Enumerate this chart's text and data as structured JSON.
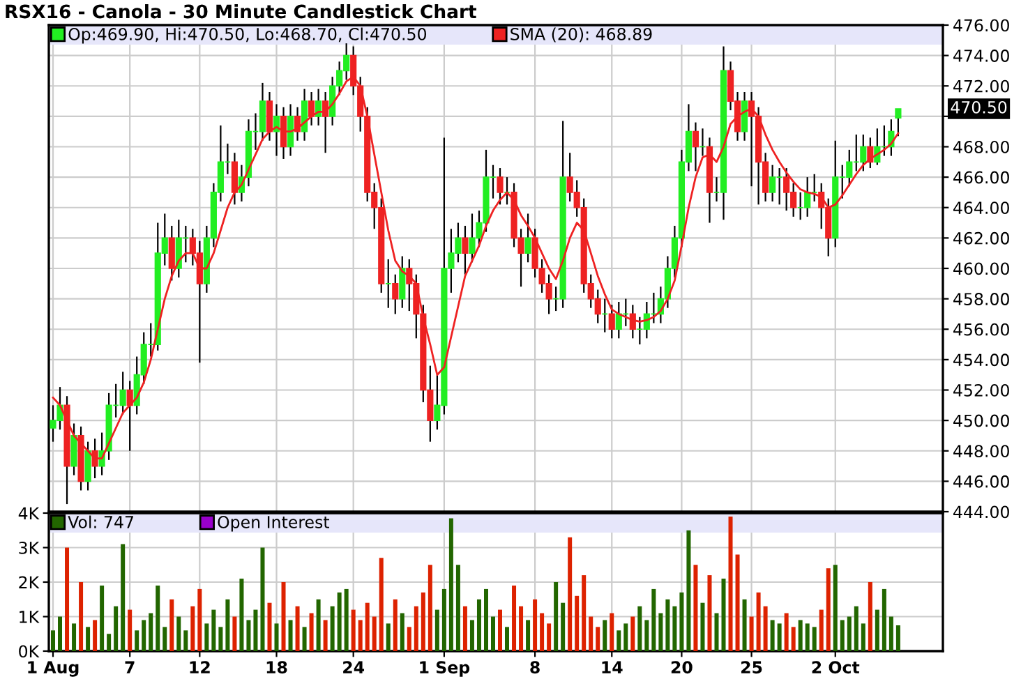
{
  "chart_data": [
    {
      "type": "candlestick",
      "title": "RSX16 - Canola - 30 Minute Candlestick Chart",
      "categories": [
        null,
        null,
        null,
        null,
        null,
        null,
        null,
        null,
        null,
        null,
        null,
        null,
        null,
        null,
        null,
        null,
        null,
        null,
        null,
        null,
        null,
        null,
        null,
        null,
        null,
        null,
        null,
        null,
        null,
        null,
        null,
        null,
        null,
        null,
        null,
        null,
        null,
        null,
        null,
        null,
        null,
        null,
        null,
        null,
        null,
        null,
        null,
        null,
        null,
        null,
        null,
        null,
        null,
        null,
        null,
        null,
        null,
        null,
        null,
        null,
        null,
        null,
        null,
        null,
        null,
        null,
        null,
        null,
        null,
        null,
        null,
        null,
        null,
        null,
        null,
        null,
        null,
        null,
        null,
        null,
        null,
        null,
        null,
        null,
        null,
        null,
        null,
        null,
        null,
        null,
        null,
        null,
        null,
        null,
        null,
        null,
        null,
        null,
        null,
        null,
        null,
        null,
        null,
        null,
        null,
        null,
        null,
        null,
        null,
        null,
        null,
        null,
        null,
        null,
        null,
        null,
        null,
        null,
        null,
        null,
        null,
        null
      ],
      "series": [
        {
          "type": "candlestick",
          "name": "Op:469.90, Hi:470.50, Lo:468.70, Cl:470.50",
          "color": "#22ee22",
          "colors": [
            "#22ee22",
            "#22ee22",
            "#ee2222",
            "#22ee22",
            "#ee2222",
            "#22ee22",
            "#ee2222",
            "#22ee22",
            "#22ee22",
            "#22ee22",
            "#22ee22",
            "#ee2222",
            "#22ee22",
            "#22ee22",
            "#22ee22",
            "#22ee22",
            "#22ee22",
            "#ee2222",
            "#22ee22",
            "#22ee22",
            "#ee2222",
            "#ee2222",
            "#22ee22",
            "#22ee22",
            "#22ee22",
            "#22ee22",
            "#ee2222",
            "#22ee22",
            "#22ee22",
            "#22ee22",
            "#22ee22",
            "#ee2222",
            "#22ee22",
            "#ee2222",
            "#22ee22",
            "#ee2222",
            "#22ee22",
            "#ee2222",
            "#22ee22",
            "#ee2222",
            "#22ee22",
            "#22ee22",
            "#22ee22",
            "#ee2222",
            "#ee2222",
            "#ee2222",
            "#ee2222",
            "#ee2222",
            "#22ee22",
            "#ee2222",
            "#22ee22",
            "#ee2222",
            "#ee2222",
            "#ee2222",
            "#ee2222",
            "#22ee22",
            "#22ee22",
            "#22ee22",
            "#22ee22",
            "#ee2222",
            "#22ee22",
            "#22ee22",
            "#22ee22",
            "#22ee22",
            "#ee2222",
            "#22ee22",
            "#ee2222",
            "#ee2222",
            "#22ee22",
            "#ee2222",
            "#ee2222",
            "#ee2222",
            "#22ee22",
            "#22ee22",
            "#ee2222",
            "#ee2222",
            "#ee2222",
            "#ee2222",
            "#ee2222",
            "#22ee22",
            "#ee2222",
            "#22ee22",
            "#22ee22",
            "#ee2222",
            "#22ee22",
            "#22ee22",
            "#22ee22",
            "#22ee22",
            "#22ee22",
            "#22ee22",
            "#22ee22",
            "#22ee22",
            "#ee2222",
            "#22ee22",
            "#ee2222",
            "#22ee22",
            "#22ee22",
            "#ee2222",
            "#ee2222",
            "#22ee22",
            "#ee2222",
            "#ee2222",
            "#ee2222",
            "#22ee22",
            "#22ee22",
            "#ee2222",
            "#ee2222",
            "#22ee22",
            "#22ee22",
            "#22ee22",
            "#ee2222",
            "#ee2222",
            "#22ee22",
            "#22ee22",
            "#22ee22",
            "#22ee22",
            "#22ee22",
            "#ee2222",
            "#22ee22",
            "#22ee22",
            "#22ee22",
            "#22ee22"
          ],
          "ohlc": [
            [
              449.5,
              451.0,
              448.6,
              450.0
            ],
            [
              450.0,
              452.2,
              449.4,
              451.0
            ],
            [
              451.0,
              451.6,
              444.5,
              447.0
            ],
            [
              447.0,
              449.8,
              446.4,
              449.0
            ],
            [
              449.0,
              449.6,
              445.4,
              446.0
            ],
            [
              446.0,
              448.6,
              445.4,
              448.0
            ],
            [
              448.0,
              448.8,
              446.2,
              447.0
            ],
            [
              447.0,
              449.2,
              446.4,
              448.0
            ],
            [
              448.0,
              451.8,
              447.4,
              451.0
            ],
            [
              451.0,
              452.4,
              450.2,
              451.0
            ],
            [
              451.0,
              453.2,
              450.4,
              452.0
            ],
            [
              452.0,
              452.6,
              448.0,
              451.0
            ],
            [
              451.0,
              454.2,
              450.4,
              453.0
            ],
            [
              453.0,
              455.8,
              452.4,
              455.0
            ],
            [
              455.0,
              456.4,
              454.2,
              455.0
            ],
            [
              455.0,
              463.0,
              454.6,
              461.0
            ],
            [
              461.0,
              463.6,
              460.2,
              462.0
            ],
            [
              462.0,
              462.8,
              459.2,
              460.0
            ],
            [
              460.0,
              463.2,
              459.4,
              462.0
            ],
            [
              462.0,
              462.8,
              460.4,
              462.0
            ],
            [
              462.0,
              462.6,
              460.2,
              461.0
            ],
            [
              461.0,
              461.8,
              453.8,
              459.0
            ],
            [
              459.0,
              462.8,
              458.4,
              462.0
            ],
            [
              462.0,
              465.6,
              461.4,
              465.0
            ],
            [
              465.0,
              469.4,
              464.4,
              467.0
            ],
            [
              467.0,
              468.2,
              466.2,
              467.0
            ],
            [
              467.0,
              467.6,
              464.2,
              465.0
            ],
            [
              465.0,
              466.8,
              464.4,
              466.0
            ],
            [
              466.0,
              469.8,
              465.4,
              469.0
            ],
            [
              469.0,
              470.2,
              467.8,
              469.0
            ],
            [
              469.0,
              472.2,
              468.4,
              471.0
            ],
            [
              471.0,
              471.6,
              468.4,
              469.0
            ],
            [
              469.0,
              470.8,
              467.4,
              470.0
            ],
            [
              470.0,
              470.6,
              467.2,
              468.0
            ],
            [
              468.0,
              470.8,
              467.4,
              470.0
            ],
            [
              470.0,
              470.6,
              468.4,
              469.0
            ],
            [
              469.0,
              471.8,
              468.4,
              471.0
            ],
            [
              471.0,
              471.6,
              469.4,
              470.0
            ],
            [
              470.0,
              471.8,
              469.4,
              471.0
            ],
            [
              471.0,
              471.6,
              467.6,
              470.0
            ],
            [
              470.0,
              472.6,
              469.4,
              472.0
            ],
            [
              472.0,
              473.6,
              471.4,
              473.0
            ],
            [
              473.0,
              474.8,
              472.4,
              474.0
            ],
            [
              474.0,
              474.6,
              471.4,
              472.0
            ],
            [
              472.0,
              472.6,
              469.0,
              470.0
            ],
            [
              470.0,
              470.6,
              464.4,
              465.0
            ],
            [
              465.0,
              465.6,
              462.6,
              464.0
            ],
            [
              464.0,
              464.6,
              458.4,
              459.0
            ],
            [
              459.0,
              460.6,
              457.4,
              459.0
            ],
            [
              459.0,
              459.6,
              457.0,
              458.0
            ],
            [
              458.0,
              460.8,
              457.4,
              460.0
            ],
            [
              460.0,
              460.6,
              457.2,
              459.0
            ],
            [
              459.0,
              459.6,
              455.4,
              457.0
            ],
            [
              457.0,
              457.6,
              451.2,
              452.0
            ],
            [
              452.0,
              453.6,
              448.6,
              450.0
            ],
            [
              450.0,
              453.0,
              449.4,
              451.0
            ],
            [
              451.0,
              468.6,
              450.4,
              460.0
            ],
            [
              460.0,
              462.6,
              458.4,
              461.0
            ],
            [
              461.0,
              463.0,
              460.4,
              462.0
            ],
            [
              462.0,
              462.8,
              459.6,
              461.0
            ],
            [
              461.0,
              463.6,
              460.4,
              462.0
            ],
            [
              462.0,
              463.8,
              461.4,
              463.0
            ],
            [
              463.0,
              467.8,
              462.4,
              466.0
            ],
            [
              466.0,
              466.8,
              464.6,
              466.0
            ],
            [
              466.0,
              466.6,
              464.2,
              465.0
            ],
            [
              465.0,
              466.0,
              464.2,
              465.0
            ],
            [
              465.0,
              465.6,
              461.4,
              462.0
            ],
            [
              462.0,
              462.6,
              458.8,
              461.0
            ],
            [
              461.0,
              463.6,
              460.4,
              462.0
            ],
            [
              462.0,
              462.6,
              459.4,
              460.0
            ],
            [
              460.0,
              460.6,
              458.4,
              459.0
            ],
            [
              459.0,
              459.6,
              457.0,
              458.0
            ],
            [
              458.0,
              458.8,
              457.2,
              458.0
            ],
            [
              458.0,
              469.7,
              457.4,
              466.0
            ],
            [
              466.0,
              467.6,
              464.4,
              465.0
            ],
            [
              465.0,
              465.8,
              463.4,
              464.0
            ],
            [
              464.0,
              464.6,
              458.4,
              459.0
            ],
            [
              459.0,
              459.6,
              457.4,
              458.0
            ],
            [
              458.0,
              458.6,
              456.4,
              457.0
            ],
            [
              457.0,
              458.0,
              455.8,
              457.0
            ],
            [
              457.0,
              457.6,
              455.4,
              456.0
            ],
            [
              456.0,
              457.8,
              455.4,
              457.0
            ],
            [
              457.0,
              458.0,
              456.2,
              457.0
            ],
            [
              457.0,
              457.6,
              455.4,
              456.0
            ],
            [
              456.0,
              456.8,
              455.0,
              456.0
            ],
            [
              456.0,
              457.8,
              455.4,
              457.0
            ],
            [
              457.0,
              458.4,
              456.4,
              457.0
            ],
            [
              457.0,
              458.8,
              456.4,
              458.0
            ],
            [
              458.0,
              460.8,
              457.4,
              460.0
            ],
            [
              460.0,
              462.8,
              459.4,
              462.0
            ],
            [
              462.0,
              467.8,
              461.4,
              467.0
            ],
            [
              467.0,
              470.8,
              466.4,
              469.0
            ],
            [
              469.0,
              469.6,
              466.4,
              468.0
            ],
            [
              468.0,
              469.2,
              467.4,
              468.0
            ],
            [
              468.0,
              468.6,
              463.0,
              465.0
            ],
            [
              465.0,
              466.0,
              464.4,
              465.0
            ],
            [
              465.0,
              474.6,
              463.2,
              473.0
            ],
            [
              473.0,
              473.6,
              470.4,
              471.0
            ],
            [
              471.0,
              471.6,
              468.4,
              469.0
            ],
            [
              469.0,
              471.6,
              468.4,
              471.0
            ],
            [
              471.0,
              471.6,
              465.4,
              470.0
            ],
            [
              470.0,
              470.6,
              464.2,
              467.0
            ],
            [
              467.0,
              467.6,
              464.4,
              465.0
            ],
            [
              465.0,
              466.8,
              464.4,
              466.0
            ],
            [
              466.0,
              466.6,
              464.2,
              466.0
            ],
            [
              466.0,
              466.6,
              463.8,
              465.0
            ],
            [
              465.0,
              465.6,
              463.4,
              464.0
            ],
            [
              464.0,
              465.0,
              463.2,
              464.0
            ],
            [
              464.0,
              466.0,
              463.4,
              465.0
            ],
            [
              465.0,
              466.2,
              464.4,
              465.0
            ],
            [
              465.0,
              465.6,
              462.6,
              464.0
            ],
            [
              464.0,
              464.6,
              460.8,
              462.0
            ],
            [
              462.0,
              468.4,
              461.4,
              466.0
            ],
            [
              466.0,
              466.8,
              464.6,
              466.0
            ],
            [
              466.0,
              467.8,
              465.4,
              467.0
            ],
            [
              467.0,
              468.8,
              466.4,
              467.0
            ],
            [
              467.0,
              468.8,
              466.4,
              468.0
            ],
            [
              468.0,
              468.6,
              466.6,
              467.0
            ],
            [
              467.0,
              469.2,
              466.8,
              468.0
            ],
            [
              468.0,
              469.4,
              467.4,
              468.0
            ],
            [
              468.0,
              469.8,
              467.4,
              469.0
            ],
            [
              469.9,
              470.5,
              468.7,
              470.5
            ]
          ]
        },
        {
          "type": "line",
          "name": "SMA (20): 468.89",
          "color": "#ee2222",
          "values": [
            451.5,
            451,
            450,
            449,
            448.5,
            448,
            447.5,
            447.5,
            448.5,
            449.5,
            450.5,
            451,
            451.5,
            452.5,
            454,
            456,
            458,
            459.5,
            460.5,
            461,
            461,
            460,
            460,
            461,
            462.5,
            464,
            465,
            465.5,
            466.5,
            467.5,
            468.5,
            469,
            469.3,
            469,
            469,
            469.2,
            469.6,
            470,
            470.3,
            470.3,
            470.8,
            471.5,
            472.3,
            472.6,
            472,
            470,
            467.5,
            465,
            462.5,
            460.5,
            459.8,
            459.5,
            459,
            456.8,
            455,
            453,
            453.5,
            455.5,
            457.5,
            459.5,
            460.5,
            461.5,
            462.8,
            463.8,
            464.5,
            465,
            464.5,
            463.5,
            462.8,
            462,
            461,
            460,
            459.3,
            460.5,
            462,
            463,
            462.5,
            461,
            459.5,
            458.3,
            457.3,
            457,
            456.8,
            456.6,
            456.5,
            456.6,
            456.8,
            457.2,
            458,
            459.2,
            461.5,
            464,
            466,
            467.3,
            467.5,
            467,
            468,
            469.5,
            470,
            470.3,
            470.5,
            470,
            468.8,
            467.8,
            467,
            466.3,
            465.7,
            465.2,
            465,
            464.9,
            464.7,
            464,
            464.2,
            464.8,
            465.5,
            466.2,
            466.8,
            467.2,
            467.5,
            467.8,
            468.2,
            468.89
          ]
        }
      ],
      "ylim": [
        444,
        476
      ],
      "yticks": [
        {
          "value": 444,
          "label": "444.00"
        },
        {
          "value": 446,
          "label": "446.00"
        },
        {
          "value": 448,
          "label": "448.00"
        },
        {
          "value": 450,
          "label": "450.00"
        },
        {
          "value": 452,
          "label": "452.00"
        },
        {
          "value": 454,
          "label": "454.00"
        },
        {
          "value": 456,
          "label": "456.00"
        },
        {
          "value": 458,
          "label": "458.00"
        },
        {
          "value": 460,
          "label": "460.00"
        },
        {
          "value": 462,
          "label": "462.00"
        },
        {
          "value": 464,
          "label": "464.00"
        },
        {
          "value": 466,
          "label": "466.00"
        },
        {
          "value": 468,
          "label": "468.00"
        },
        {
          "value": 470,
          "label": null
        },
        {
          "value": 472,
          "label": "472.00"
        },
        {
          "value": 474,
          "label": "474.00"
        },
        {
          "value": 476,
          "label": "476.00"
        }
      ],
      "annotations": [
        "470.50"
      ],
      "grid": true,
      "legend": "top left",
      "tick_labels": "y"
    },
    {
      "type": "bar",
      "categories": [
        "1 Aug",
        null,
        null,
        null,
        null,
        null,
        null,
        null,
        null,
        null,
        null,
        "7",
        null,
        null,
        null,
        null,
        null,
        null,
        null,
        null,
        null,
        "12",
        null,
        null,
        null,
        null,
        null,
        null,
        null,
        null,
        null,
        null,
        "18",
        null,
        null,
        null,
        null,
        null,
        null,
        null,
        null,
        null,
        null,
        "24",
        null,
        null,
        null,
        null,
        null,
        null,
        null,
        null,
        null,
        null,
        null,
        null,
        "1 Sep",
        null,
        null,
        null,
        null,
        null,
        null,
        null,
        null,
        null,
        null,
        null,
        null,
        "8",
        null,
        null,
        null,
        null,
        null,
        null,
        null,
        null,
        null,
        null,
        "14",
        null,
        null,
        null,
        null,
        null,
        null,
        null,
        null,
        null,
        "20",
        null,
        null,
        null,
        null,
        null,
        null,
        null,
        null,
        null,
        "25",
        null,
        null,
        null,
        null,
        null,
        null,
        null,
        null,
        null,
        null,
        null,
        "2 Oct",
        null,
        null,
        null,
        null,
        null,
        null,
        null,
        null,
        null
      ],
      "series": [
        {
          "name": "Vol: 747",
          "color": "#226600",
          "colors": [
            "#226600",
            "#226600",
            "#dd2200",
            "#226600",
            "#dd2200",
            "#226600",
            "#dd2200",
            "#226600",
            "#226600",
            "#226600",
            "#226600",
            "#dd2200",
            "#226600",
            "#226600",
            "#226600",
            "#226600",
            "#226600",
            "#dd2200",
            "#226600",
            "#226600",
            "#dd2200",
            "#dd2200",
            "#226600",
            "#226600",
            "#226600",
            "#226600",
            "#dd2200",
            "#226600",
            "#226600",
            "#226600",
            "#226600",
            "#dd2200",
            "#226600",
            "#dd2200",
            "#226600",
            "#dd2200",
            "#226600",
            "#dd2200",
            "#226600",
            "#dd2200",
            "#226600",
            "#226600",
            "#226600",
            "#dd2200",
            "#dd2200",
            "#dd2200",
            "#dd2200",
            "#dd2200",
            "#226600",
            "#dd2200",
            "#226600",
            "#dd2200",
            "#dd2200",
            "#dd2200",
            "#dd2200",
            "#226600",
            "#226600",
            "#226600",
            "#226600",
            "#dd2200",
            "#226600",
            "#226600",
            "#226600",
            "#226600",
            "#dd2200",
            "#226600",
            "#dd2200",
            "#dd2200",
            "#226600",
            "#dd2200",
            "#dd2200",
            "#dd2200",
            "#226600",
            "#226600",
            "#dd2200",
            "#dd2200",
            "#dd2200",
            "#dd2200",
            "#dd2200",
            "#226600",
            "#dd2200",
            "#226600",
            "#226600",
            "#dd2200",
            "#226600",
            "#226600",
            "#226600",
            "#226600",
            "#226600",
            "#226600",
            "#226600",
            "#226600",
            "#dd2200",
            "#226600",
            "#dd2200",
            "#226600",
            "#226600",
            "#dd2200",
            "#dd2200",
            "#226600",
            "#dd2200",
            "#dd2200",
            "#dd2200",
            "#226600",
            "#226600",
            "#dd2200",
            "#dd2200",
            "#226600",
            "#226600",
            "#226600",
            "#dd2200",
            "#dd2200",
            "#226600",
            "#226600",
            "#226600",
            "#226600",
            "#226600",
            "#dd2200",
            "#226600",
            "#226600",
            "#226600",
            "#226600"
          ],
          "values": [
            600,
            1000,
            3000,
            800,
            2000,
            700,
            900,
            1900,
            500,
            1300,
            3100,
            1200,
            600,
            900,
            1100,
            1900,
            700,
            1500,
            1000,
            600,
            1300,
            1800,
            800,
            1200,
            700,
            1500,
            1000,
            2100,
            900,
            1200,
            3000,
            1400,
            800,
            2000,
            900,
            1300,
            700,
            1100,
            1500,
            900,
            1300,
            1700,
            1800,
            1200,
            900,
            1400,
            1000,
            2700,
            800,
            1500,
            1100,
            700,
            1300,
            1700,
            2500,
            1200,
            1800,
            3850,
            2500,
            1300,
            900,
            1500,
            1800,
            1000,
            1200,
            700,
            1900,
            1300,
            900,
            1500,
            1100,
            800,
            2000,
            1400,
            3300,
            1600,
            2200,
            1000,
            700,
            900,
            1100,
            600,
            800,
            1000,
            1300,
            900,
            1800,
            1100,
            1500,
            1300,
            1700,
            3500,
            2500,
            1400,
            2200,
            1100,
            2100,
            3900,
            2800,
            1500,
            1000,
            1700,
            1300,
            900,
            800,
            1100,
            700,
            900,
            800,
            700,
            1200,
            2400,
            2500,
            900,
            1000,
            1300,
            800,
            2000,
            1200,
            1800,
            1000,
            747
          ]
        },
        {
          "name": "Open Interest",
          "color": "#9900cc",
          "values": [
            null,
            null,
            null,
            null,
            null,
            null,
            null,
            null,
            null,
            null,
            null,
            null,
            null,
            null,
            null,
            null,
            null,
            null,
            null,
            null,
            null,
            null,
            null,
            null,
            null,
            null,
            null,
            null,
            null,
            null,
            null,
            null,
            null,
            null,
            null,
            null,
            null,
            null,
            null,
            null,
            null,
            null,
            null,
            null,
            null,
            null,
            null,
            null,
            null,
            null,
            null,
            null,
            null,
            null,
            null,
            null,
            null,
            null,
            null,
            null,
            null,
            null,
            null,
            null,
            null,
            null,
            null,
            null,
            null,
            null,
            null,
            null,
            null,
            null,
            null,
            null,
            null,
            null,
            null,
            null,
            null,
            null,
            null,
            null,
            null,
            null,
            null,
            null,
            null,
            null,
            null,
            null,
            null,
            null,
            null,
            null,
            null,
            null,
            null,
            null,
            null,
            null,
            null,
            null,
            null,
            null,
            null,
            null,
            null,
            null,
            null,
            null,
            null,
            null,
            null,
            null,
            null,
            null,
            null,
            null,
            null,
            null
          ]
        }
      ],
      "ylim": [
        0,
        4000
      ],
      "yticks": [
        {
          "value": 0,
          "label": "0K"
        },
        {
          "value": 1000,
          "label": "1K"
        },
        {
          "value": 2000,
          "label": "2K"
        },
        {
          "value": 3000,
          "label": "3K"
        },
        {
          "value": 4000,
          "label": "4K"
        }
      ],
      "grid": true,
      "legend": "top left"
    }
  ]
}
